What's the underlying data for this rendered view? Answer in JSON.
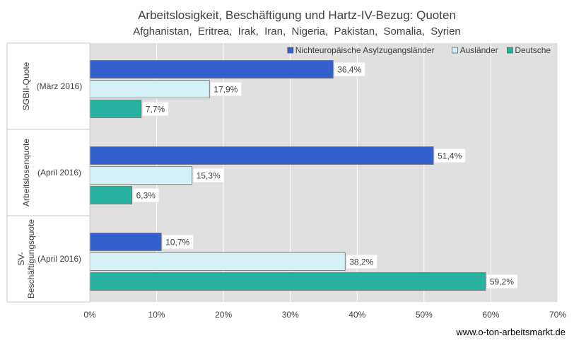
{
  "chart_data": {
    "type": "bar",
    "orientation": "horizontal",
    "title": "Arbeitslosigkeit, Beschäftigung und Hartz-IV-Bezug: Quoten",
    "subtitle": "Afghanistan,  Eritrea,  Irak,  Iran,  Nigeria,  Pakistan,  Somalia,  Syrien",
    "groups": [
      {
        "name": "SGBII-Quote",
        "sublabel": "(März 2016)"
      },
      {
        "name": "Arbeitslosenquote",
        "sublabel": "(April 2016)"
      },
      {
        "name": "SV-Beschäftigungsquote",
        "sublabel": "(April 2016)"
      }
    ],
    "series": [
      {
        "name": "Nichteuropäische Asylzugangsländer",
        "color": "#3360cc",
        "values": [
          36.4,
          51.4,
          10.7
        ],
        "labels": [
          "36,4%",
          "51,4%",
          "10,7%"
        ]
      },
      {
        "name": "Ausländer",
        "color": "#d4f1f8",
        "values": [
          17.9,
          15.3,
          38.2
        ],
        "labels": [
          "17,9%",
          "15,3%",
          "38,2%"
        ]
      },
      {
        "name": "Deutsche",
        "color": "#27b29f",
        "values": [
          7.7,
          6.3,
          59.2
        ],
        "labels": [
          "7,7%",
          "6,3%",
          "59,2%"
        ]
      }
    ],
    "xlim": [
      0,
      70
    ],
    "xticks": [
      0,
      10,
      20,
      30,
      40,
      50,
      60,
      70
    ],
    "xtick_labels": [
      "0%",
      "10%",
      "20%",
      "30%",
      "40%",
      "50%",
      "60%",
      "70%"
    ],
    "grid": true,
    "legend_position": "top-right",
    "plot_background": "#e0e0e0"
  },
  "source": "www.o-ton-arbeitsmarkt.de"
}
